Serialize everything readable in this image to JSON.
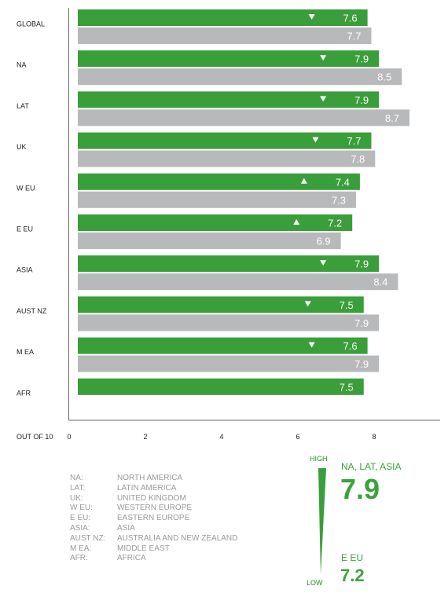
{
  "chart_data": {
    "type": "bar",
    "orientation": "horizontal",
    "categories": [
      "GLOBAL",
      "NA",
      "LAT",
      "UK",
      "W EU",
      "E EU",
      "ASIA",
      "AUST NZ",
      "M EA",
      "AFR"
    ],
    "series": [
      {
        "values": [
          7.6,
          7.9,
          7.9,
          7.7,
          7.4,
          7.2,
          7.9,
          7.5,
          7.6,
          7.5
        ],
        "color": "#3a9e3a"
      },
      {
        "values": [
          7.7,
          8.5,
          8.7,
          7.8,
          7.3,
          6.9,
          8.4,
          7.9,
          7.9,
          null
        ],
        "color": "#b8b9bb"
      }
    ],
    "value_labels": {
      "green": [
        "7.6",
        "7.9",
        "7.9",
        "7.7",
        "7.4",
        "7.2",
        "7.9",
        "7.5",
        "7.6",
        "7.5"
      ],
      "gray": [
        "7.7",
        "8.5",
        "8.7",
        "7.8",
        "7.3",
        "6.9",
        "8.4",
        "7.9",
        "7.9",
        ""
      ]
    },
    "trend_markers": [
      "down",
      "down",
      "down",
      "down",
      "up",
      "up",
      "down",
      "down",
      "down",
      null
    ],
    "xlabel": "OUT OF 10",
    "xticks": [
      "0",
      "2",
      "4",
      "6",
      "8"
    ],
    "xlim": [
      0,
      9.4
    ],
    "grid": false
  },
  "legend": [
    {
      "abbr": "NA:",
      "full": "NORTH AMERICA"
    },
    {
      "abbr": "LAT:",
      "full": "LATIN AMERICA"
    },
    {
      "abbr": "UK:",
      "full": "UNITED KINGDOM"
    },
    {
      "abbr": "W EU:",
      "full": "WESTERN EUROPE"
    },
    {
      "abbr": "E EU:",
      "full": "EASTERN EUROPE"
    },
    {
      "abbr": "ASIA:",
      "full": "ASIA"
    },
    {
      "abbr": "AUST NZ:",
      "full": "AUSTRALIA AND NEW ZEALAND"
    },
    {
      "abbr": "M EA:",
      "full": "MIDDLE EAST"
    },
    {
      "abbr": "AFR:",
      "full": "AFRICA"
    }
  ],
  "key": {
    "high_label": "HIGH",
    "low_label": "LOW",
    "top_title": "NA, LAT, ASIA",
    "top_value": "7.9",
    "bottom_title": "E EU",
    "bottom_value": "7.2",
    "color": "#3aa33a"
  }
}
